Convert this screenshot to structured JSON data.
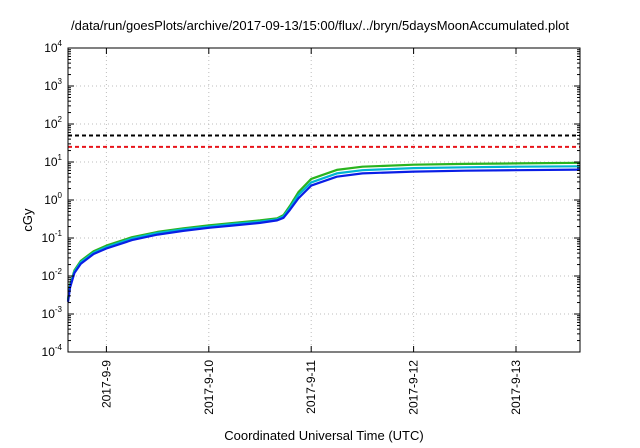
{
  "chart_data": {
    "type": "line",
    "title": "/data/run/goesPlots/archive/2017-09-13/15:00/flux/../bryn/5daysMoonAccumulated.plot",
    "xlabel": "Coordinated Universal Time (UTC)",
    "ylabel": "cGy",
    "y_scale": "log",
    "ylim": [
      0.0001,
      10000
    ],
    "xlim": [
      "2017-09-08T15:00",
      "2017-09-13T15:00"
    ],
    "grid": true,
    "x_ticks": [
      "2017-09-09T00:00",
      "2017-09-10T00:00",
      "2017-09-11T00:00",
      "2017-09-12T00:00",
      "2017-09-13T00:00"
    ],
    "x_tick_labels": [
      "2017-9-9",
      "2017-9-10",
      "2017-9-11",
      "2017-9-12",
      "2017-9-13"
    ],
    "y_tick_exponents": [
      "-4",
      "-3",
      "-2",
      "-1",
      "0",
      "1",
      "2",
      "3",
      "4"
    ],
    "y_tick_base": "10",
    "thresholds": [
      {
        "value": 50,
        "color": "#000000",
        "style": "dashed"
      },
      {
        "value": 25,
        "color": "#e8141b",
        "style": "dashed"
      }
    ],
    "series": [
      {
        "color": "#2ab41e",
        "points": [
          [
            "2017-09-08T15:00",
            0.0025
          ],
          [
            "2017-09-08T15:30",
            0.006
          ],
          [
            "2017-09-08T16:30",
            0.014
          ],
          [
            "2017-09-08T18:00",
            0.025
          ],
          [
            "2017-09-08T21:00",
            0.045
          ],
          [
            "2017-09-09T00:00",
            0.063
          ],
          [
            "2017-09-09T06:00",
            0.105
          ],
          [
            "2017-09-09T12:00",
            0.145
          ],
          [
            "2017-09-09T18:00",
            0.18
          ],
          [
            "2017-09-10T00:00",
            0.215
          ],
          [
            "2017-09-10T06:00",
            0.25
          ],
          [
            "2017-09-10T12:00",
            0.29
          ],
          [
            "2017-09-10T16:00",
            0.33
          ],
          [
            "2017-09-10T17:30",
            0.4
          ],
          [
            "2017-09-10T19:00",
            0.7
          ],
          [
            "2017-09-10T21:00",
            1.6
          ],
          [
            "2017-09-11T00:00",
            3.6
          ],
          [
            "2017-09-11T06:00",
            6.2
          ],
          [
            "2017-09-11T12:00",
            7.5
          ],
          [
            "2017-09-12T00:00",
            8.5
          ],
          [
            "2017-09-12T12:00",
            8.9
          ],
          [
            "2017-09-13T00:00",
            9.2
          ],
          [
            "2017-09-13T15:00",
            9.5
          ]
        ]
      },
      {
        "color": "#00b4d2",
        "points": [
          [
            "2017-09-08T15:00",
            0.0023
          ],
          [
            "2017-09-08T15:30",
            0.0055
          ],
          [
            "2017-09-08T16:30",
            0.013
          ],
          [
            "2017-09-08T18:00",
            0.023
          ],
          [
            "2017-09-08T21:00",
            0.041
          ],
          [
            "2017-09-09T00:00",
            0.058
          ],
          [
            "2017-09-09T06:00",
            0.097
          ],
          [
            "2017-09-09T12:00",
            0.135
          ],
          [
            "2017-09-09T18:00",
            0.168
          ],
          [
            "2017-09-10T00:00",
            0.2
          ],
          [
            "2017-09-10T06:00",
            0.235
          ],
          [
            "2017-09-10T12:00",
            0.27
          ],
          [
            "2017-09-10T16:00",
            0.31
          ],
          [
            "2017-09-10T17:30",
            0.37
          ],
          [
            "2017-09-10T19:00",
            0.62
          ],
          [
            "2017-09-10T21:00",
            1.35
          ],
          [
            "2017-09-11T00:00",
            2.9
          ],
          [
            "2017-09-11T06:00",
            5.0
          ],
          [
            "2017-09-11T12:00",
            6.1
          ],
          [
            "2017-09-12T00:00",
            6.9
          ],
          [
            "2017-09-12T12:00",
            7.25
          ],
          [
            "2017-09-13T00:00",
            7.5
          ],
          [
            "2017-09-13T15:00",
            7.7
          ]
        ]
      },
      {
        "color": "#0a1ee6",
        "points": [
          [
            "2017-09-08T15:00",
            0.0021
          ],
          [
            "2017-09-08T15:30",
            0.005
          ],
          [
            "2017-09-08T16:30",
            0.012
          ],
          [
            "2017-09-08T18:00",
            0.021
          ],
          [
            "2017-09-08T21:00",
            0.038
          ],
          [
            "2017-09-09T00:00",
            0.053
          ],
          [
            "2017-09-09T06:00",
            0.088
          ],
          [
            "2017-09-09T12:00",
            0.123
          ],
          [
            "2017-09-09T18:00",
            0.154
          ],
          [
            "2017-09-10T00:00",
            0.185
          ],
          [
            "2017-09-10T06:00",
            0.215
          ],
          [
            "2017-09-10T12:00",
            0.25
          ],
          [
            "2017-09-10T16:00",
            0.29
          ],
          [
            "2017-09-10T17:30",
            0.34
          ],
          [
            "2017-09-10T19:00",
            0.55
          ],
          [
            "2017-09-10T21:00",
            1.1
          ],
          [
            "2017-09-11T00:00",
            2.4
          ],
          [
            "2017-09-11T06:00",
            4.1
          ],
          [
            "2017-09-11T12:00",
            5.0
          ],
          [
            "2017-09-12T00:00",
            5.6
          ],
          [
            "2017-09-12T12:00",
            5.9
          ],
          [
            "2017-09-13T00:00",
            6.1
          ],
          [
            "2017-09-13T15:00",
            6.3
          ]
        ]
      }
    ]
  }
}
